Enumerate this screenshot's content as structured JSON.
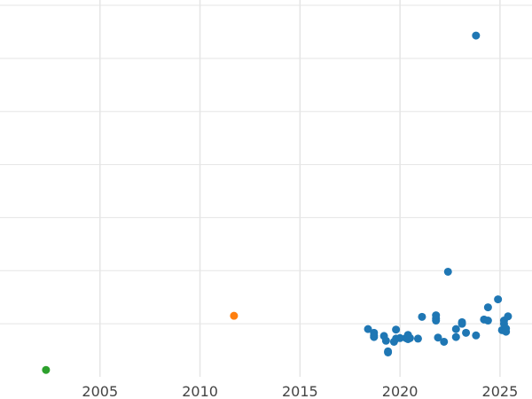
{
  "chart_data": {
    "type": "scatter",
    "title": "",
    "xlabel": "",
    "ylabel": "",
    "grid": true,
    "legend": "none",
    "xlim": [
      2000.0,
      2026.6
    ],
    "ylim": [
      0,
      7.1
    ],
    "x_ticks": [
      2005,
      2010,
      2015,
      2020,
      2025
    ],
    "x_tick_labels": [
      "2005",
      "2010",
      "2015",
      "2020",
      "2025"
    ],
    "y_gridlines": [
      1,
      2,
      3,
      4,
      5,
      6,
      7
    ],
    "colors": {
      "blue": "#1f77b4",
      "orange": "#ff7f0e",
      "green": "#2ca02c",
      "grid": "#e5e5e5"
    },
    "series": [
      {
        "color": "#2ca02c",
        "points": [
          [
            2002.3,
            0.13
          ]
        ]
      },
      {
        "color": "#ff7f0e",
        "points": [
          [
            2011.7,
            1.15
          ]
        ]
      },
      {
        "color": "#1f77b4",
        "points": [
          [
            2018.4,
            0.9
          ],
          [
            2018.7,
            0.83
          ],
          [
            2018.7,
            0.78
          ],
          [
            2018.7,
            0.75
          ],
          [
            2019.2,
            0.77
          ],
          [
            2019.3,
            0.68
          ],
          [
            2019.4,
            0.48
          ],
          [
            2019.4,
            0.46
          ],
          [
            2019.7,
            0.66
          ],
          [
            2019.8,
            0.89
          ],
          [
            2019.8,
            0.72
          ],
          [
            2020.0,
            0.73
          ],
          [
            2020.3,
            0.73
          ],
          [
            2020.4,
            0.79
          ],
          [
            2020.4,
            0.71
          ],
          [
            2020.5,
            0.73
          ],
          [
            2020.9,
            0.72
          ],
          [
            2021.1,
            1.13
          ],
          [
            2021.8,
            1.06
          ],
          [
            2021.8,
            1.1
          ],
          [
            2021.8,
            1.16
          ],
          [
            2021.9,
            0.74
          ],
          [
            2022.2,
            0.66
          ],
          [
            2022.4,
            1.98
          ],
          [
            2022.8,
            0.75
          ],
          [
            2022.8,
            0.9
          ],
          [
            2023.1,
            1.03
          ],
          [
            2023.1,
            1.0
          ],
          [
            2023.3,
            0.83
          ],
          [
            2023.8,
            6.43
          ],
          [
            2023.8,
            0.78
          ],
          [
            2024.2,
            1.08
          ],
          [
            2024.4,
            1.06
          ],
          [
            2024.4,
            1.31
          ],
          [
            2024.9,
            1.46
          ],
          [
            2025.1,
            0.88
          ],
          [
            2025.2,
            1.06
          ],
          [
            2025.2,
            1.0
          ],
          [
            2025.3,
            0.91
          ],
          [
            2025.3,
            0.85
          ],
          [
            2025.4,
            1.14
          ]
        ]
      }
    ]
  }
}
